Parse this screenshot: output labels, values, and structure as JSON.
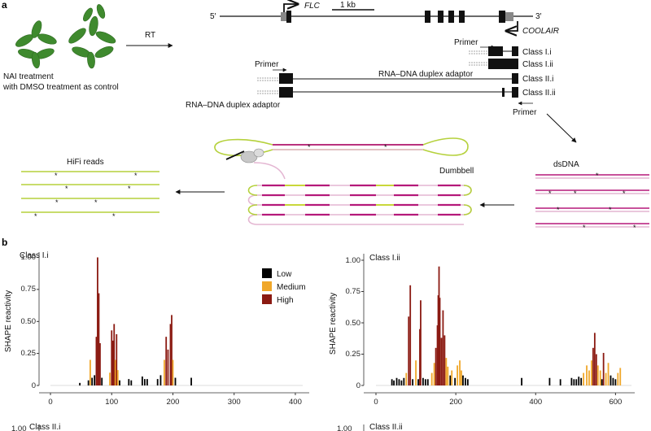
{
  "panel_a": {
    "letter": "a",
    "treatment_line1": "NAI treatment",
    "treatment_line2": "with DMSO treatment as control",
    "rt_label": "RT",
    "five_prime": "5′",
    "three_prime": "3′",
    "flc_label": "FLC",
    "scale_label": "1 kb",
    "coolair_label": "COOLAIR",
    "primer_label": "Primer",
    "classes": [
      "Class I.i",
      "Class I.ii",
      "Class II.i",
      "Class II.ii"
    ],
    "adaptor_label": "RNA–DNA duplex adaptor",
    "dsdna_label": "dsDNA",
    "dumbbell_label": "Dumbbell",
    "hifi_label": "HiFi reads"
  },
  "panel_b": {
    "letter": "b",
    "legend": [
      {
        "label": "Low",
        "color": "#000000"
      },
      {
        "label": "Medium",
        "color": "#f0a72a"
      },
      {
        "label": "High",
        "color": "#8b1a12"
      }
    ],
    "ylabel": "SHAPE reactivity",
    "yticks": [
      "0",
      "0.25",
      "0.50",
      "0.75",
      "1.00"
    ],
    "extra_panels": [
      "Class II.i",
      "Class II.ii"
    ],
    "extra_ytick": "1.00"
  },
  "chart_data": [
    {
      "type": "bar",
      "title": "Class I.i",
      "ylabel": "SHAPE reactivity",
      "xlim": [
        0,
        420
      ],
      "ylim": [
        0,
        1.0
      ],
      "xticks": [
        0,
        100,
        200,
        300,
        400
      ],
      "points": [
        {
          "x": 48,
          "y": 0.02
        },
        {
          "x": 62,
          "y": 0.04
        },
        {
          "x": 65,
          "y": 0.2
        },
        {
          "x": 68,
          "y": 0.06
        },
        {
          "x": 72,
          "y": 0.08
        },
        {
          "x": 75,
          "y": 0.38
        },
        {
          "x": 77,
          "y": 1.0
        },
        {
          "x": 79,
          "y": 0.72
        },
        {
          "x": 81,
          "y": 0.33
        },
        {
          "x": 84,
          "y": 0.06
        },
        {
          "x": 97,
          "y": 0.1
        },
        {
          "x": 100,
          "y": 0.43
        },
        {
          "x": 102,
          "y": 0.35
        },
        {
          "x": 104,
          "y": 0.48
        },
        {
          "x": 106,
          "y": 0.2
        },
        {
          "x": 108,
          "y": 0.4
        },
        {
          "x": 110,
          "y": 0.12
        },
        {
          "x": 113,
          "y": 0.04
        },
        {
          "x": 128,
          "y": 0.05
        },
        {
          "x": 132,
          "y": 0.04
        },
        {
          "x": 150,
          "y": 0.07
        },
        {
          "x": 154,
          "y": 0.05
        },
        {
          "x": 158,
          "y": 0.05
        },
        {
          "x": 175,
          "y": 0.05
        },
        {
          "x": 180,
          "y": 0.08
        },
        {
          "x": 186,
          "y": 0.2
        },
        {
          "x": 189,
          "y": 0.38
        },
        {
          "x": 192,
          "y": 0.28
        },
        {
          "x": 196,
          "y": 0.48
        },
        {
          "x": 198,
          "y": 0.55
        },
        {
          "x": 200,
          "y": 0.2
        },
        {
          "x": 204,
          "y": 0.06
        },
        {
          "x": 230,
          "y": 0.06
        }
      ]
    },
    {
      "type": "bar",
      "title": "Class I.ii",
      "ylabel": "SHAPE reactivity",
      "xlim": [
        0,
        640
      ],
      "ylim": [
        0,
        1.0
      ],
      "xticks": [
        0,
        200,
        400,
        600
      ],
      "points": [
        {
          "x": 40,
          "y": 0.05
        },
        {
          "x": 45,
          "y": 0.04
        },
        {
          "x": 52,
          "y": 0.06
        },
        {
          "x": 58,
          "y": 0.05
        },
        {
          "x": 64,
          "y": 0.04
        },
        {
          "x": 70,
          "y": 0.06
        },
        {
          "x": 76,
          "y": 0.1
        },
        {
          "x": 82,
          "y": 0.55
        },
        {
          "x": 86,
          "y": 0.8
        },
        {
          "x": 92,
          "y": 0.05
        },
        {
          "x": 100,
          "y": 0.2
        },
        {
          "x": 106,
          "y": 0.05
        },
        {
          "x": 110,
          "y": 0.45
        },
        {
          "x": 112,
          "y": 0.68
        },
        {
          "x": 118,
          "y": 0.06
        },
        {
          "x": 124,
          "y": 0.05
        },
        {
          "x": 130,
          "y": 0.05
        },
        {
          "x": 140,
          "y": 0.1
        },
        {
          "x": 146,
          "y": 0.18
        },
        {
          "x": 150,
          "y": 0.3
        },
        {
          "x": 154,
          "y": 0.48
        },
        {
          "x": 156,
          "y": 0.72
        },
        {
          "x": 158,
          "y": 0.95
        },
        {
          "x": 160,
          "y": 0.7
        },
        {
          "x": 164,
          "y": 0.38
        },
        {
          "x": 168,
          "y": 0.6
        },
        {
          "x": 172,
          "y": 0.4
        },
        {
          "x": 176,
          "y": 0.22
        },
        {
          "x": 180,
          "y": 0.15
        },
        {
          "x": 186,
          "y": 0.08
        },
        {
          "x": 190,
          "y": 0.12
        },
        {
          "x": 198,
          "y": 0.06
        },
        {
          "x": 204,
          "y": 0.16
        },
        {
          "x": 210,
          "y": 0.2
        },
        {
          "x": 214,
          "y": 0.12
        },
        {
          "x": 218,
          "y": 0.08
        },
        {
          "x": 224,
          "y": 0.06
        },
        {
          "x": 230,
          "y": 0.05
        },
        {
          "x": 365,
          "y": 0.06
        },
        {
          "x": 435,
          "y": 0.06
        },
        {
          "x": 462,
          "y": 0.05
        },
        {
          "x": 490,
          "y": 0.06
        },
        {
          "x": 496,
          "y": 0.05
        },
        {
          "x": 502,
          "y": 0.05
        },
        {
          "x": 508,
          "y": 0.07
        },
        {
          "x": 514,
          "y": 0.06
        },
        {
          "x": 520,
          "y": 0.1
        },
        {
          "x": 528,
          "y": 0.16
        },
        {
          "x": 534,
          "y": 0.12
        },
        {
          "x": 540,
          "y": 0.2
        },
        {
          "x": 544,
          "y": 0.3
        },
        {
          "x": 548,
          "y": 0.42
        },
        {
          "x": 552,
          "y": 0.25
        },
        {
          "x": 556,
          "y": 0.16
        },
        {
          "x": 562,
          "y": 0.12
        },
        {
          "x": 566,
          "y": 0.05
        },
        {
          "x": 570,
          "y": 0.26
        },
        {
          "x": 576,
          "y": 0.1
        },
        {
          "x": 582,
          "y": 0.18
        },
        {
          "x": 588,
          "y": 0.08
        },
        {
          "x": 594,
          "y": 0.06
        },
        {
          "x": 600,
          "y": 0.05
        },
        {
          "x": 606,
          "y": 0.1
        },
        {
          "x": 612,
          "y": 0.14
        }
      ]
    }
  ]
}
